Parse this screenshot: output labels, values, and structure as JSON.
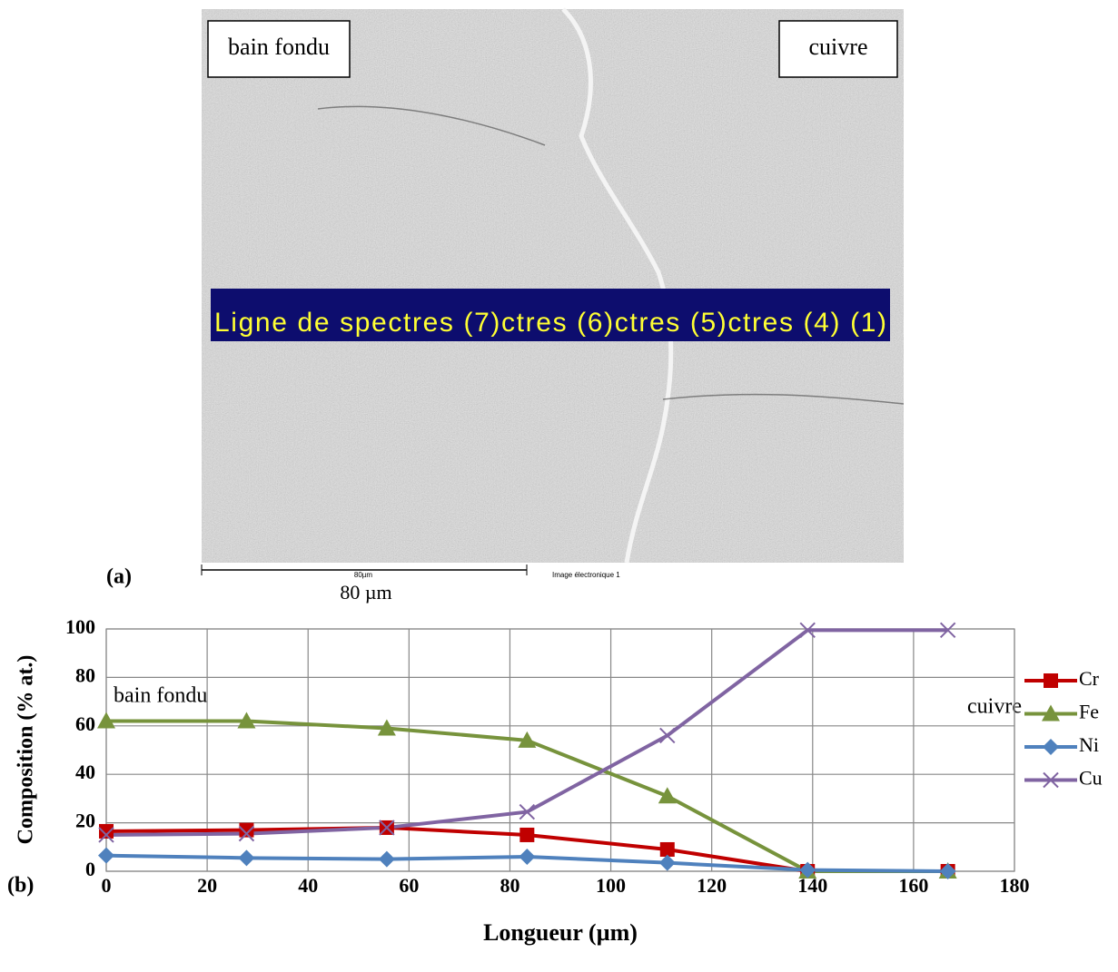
{
  "image_panel": {
    "panel_label": "(a)",
    "label_left": "bain fondu",
    "label_right": "cuivre",
    "spectrum_line": "Ligne de spectres (7)ctres (6)ctres (5)ctres (4) (1)",
    "scale_bar_label": "80µm",
    "image_caption": "Image électronique 1",
    "scale_text": "80 µm"
  },
  "chart_data": {
    "type": "line",
    "panel_label": "(b)",
    "x_label": "Longueur (µm)",
    "y_label": "Composition (% at.)",
    "annotations": [
      "bain fondu",
      "cuivre"
    ],
    "x": [
      0,
      27.8,
      55.6,
      83.4,
      111.2,
      139,
      166.8
    ],
    "series": [
      {
        "name": "Cr",
        "color": "#c00000",
        "marker": "square",
        "values": [
          16.5,
          17,
          18,
          15,
          9,
          0,
          0
        ]
      },
      {
        "name": "Fe",
        "color": "#77933c",
        "marker": "triangle",
        "values": [
          62,
          62,
          59,
          54,
          31,
          0,
          0
        ]
      },
      {
        "name": "Ni",
        "color": "#4f81bd",
        "marker": "diamond",
        "values": [
          6.5,
          5.5,
          5,
          6,
          3.5,
          0.5,
          0
        ]
      },
      {
        "name": "Cu",
        "color": "#8064a2",
        "marker": "x",
        "values": [
          15,
          15.5,
          18,
          24.5,
          56,
          99.5,
          99.5
        ]
      }
    ],
    "xlim": [
      0,
      180
    ],
    "xticks": [
      0,
      20,
      40,
      60,
      80,
      100,
      120,
      140,
      160,
      180
    ],
    "ylim": [
      0,
      100
    ],
    "yticks": [
      0,
      20,
      40,
      60,
      80,
      100
    ],
    "grid": true,
    "legend": "right"
  }
}
